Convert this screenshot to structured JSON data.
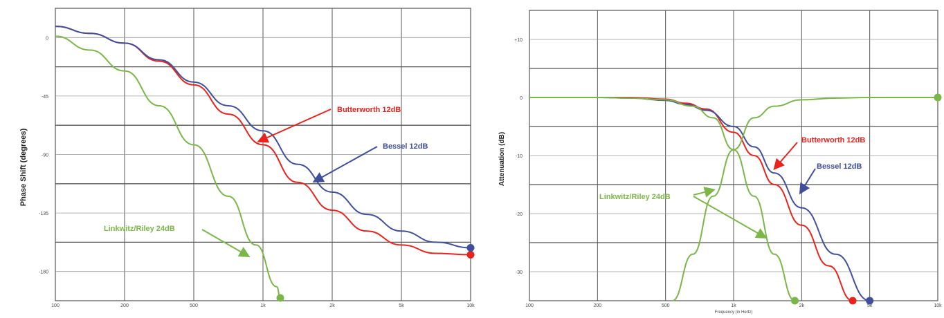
{
  "colors": {
    "butterworth": "#e8231e",
    "bessel": "#3f4f9c",
    "linkwitz": "#7ab648",
    "grid_major": "#555555",
    "grid_minor": "#999999"
  },
  "chart_data": [
    {
      "type": "line",
      "ylabel": "Phase Shift (degrees)",
      "xlabel": "",
      "x_tick_labels": [
        "100",
        "200",
        "500",
        "1k",
        "2k",
        "5k",
        "10k"
      ],
      "y_tick_labels": [
        "0",
        "-45",
        "-90",
        "-135",
        "-180"
      ],
      "ylim": [
        -200,
        10
      ],
      "series": [
        {
          "name": "Butterworth 12dB",
          "color_key": "butterworth",
          "x": [
            0,
            0.5,
            1,
            1.5,
            2,
            2.5,
            3,
            3.5,
            4,
            4.5,
            5,
            5.5,
            6
          ],
          "y": [
            -3,
            -8,
            -15,
            -28,
            -45,
            -66,
            -88,
            -115,
            -135,
            -150,
            -160,
            -166,
            -167
          ]
        },
        {
          "name": "Bessel 12dB",
          "color_key": "bessel",
          "x": [
            0,
            0.5,
            1,
            1.5,
            2,
            2.5,
            3,
            3.5,
            4,
            4.5,
            5,
            5.5,
            6
          ],
          "y": [
            -3,
            -8,
            -15,
            -27,
            -43,
            -60,
            -78,
            -102,
            -122,
            -138,
            -150,
            -158,
            -162
          ]
        },
        {
          "name": "Linkwitz/Riley 24dB",
          "color_key": "linkwitz",
          "x": [
            0,
            0.5,
            1,
            1.5,
            2,
            2.5,
            2.9,
            3.2,
            3.25
          ],
          "y": [
            -10,
            -20,
            -35,
            -60,
            -88,
            -125,
            -160,
            -190,
            -198
          ]
        }
      ],
      "annotations": [
        {
          "text": "Butterworth 12dB",
          "color_key": "butterworth"
        },
        {
          "text": "Bessel 12dB",
          "color_key": "bessel"
        },
        {
          "text": "Linkwitz/Riley 24dB",
          "color_key": "linkwitz"
        }
      ]
    },
    {
      "type": "line",
      "ylabel": "Attenuation (dB)",
      "xlabel": "Frequency (in Hertz)",
      "x_tick_labels": [
        "100",
        "200",
        "500",
        "1k",
        "2k",
        "5k",
        "10k"
      ],
      "y_tick_labels": [
        "+10",
        "0",
        "-10",
        "-20",
        "-30"
      ],
      "ylim": [
        -35,
        15
      ],
      "series": [
        {
          "name": "Butterworth 12dB",
          "color_key": "butterworth",
          "x": [
            0,
            1,
            1.5,
            2,
            2.3,
            2.6,
            3,
            3.3,
            3.6,
            4,
            4.4,
            4.75
          ],
          "y": [
            0,
            0,
            0,
            -0.3,
            -1,
            -2,
            -6,
            -10,
            -15,
            -22,
            -29,
            -35
          ]
        },
        {
          "name": "Bessel 12dB",
          "color_key": "bessel",
          "x": [
            0,
            1,
            1.5,
            2,
            2.3,
            2.6,
            3,
            3.3,
            3.6,
            4,
            4.5,
            5.0
          ],
          "y": [
            0,
            0,
            -0.1,
            -0.5,
            -1.2,
            -2.2,
            -5,
            -8.5,
            -13,
            -19,
            -27,
            -35
          ]
        },
        {
          "name": "Linkwitz/Riley 24dB",
          "color_key": "linkwitz",
          "x": [
            0,
            1,
            1.5,
            2,
            2.4,
            2.7,
            3,
            3.3,
            3.6,
            3.9
          ],
          "y": [
            0,
            0,
            -0.1,
            -0.4,
            -1.5,
            -3.5,
            -9,
            -17,
            -27,
            -35
          ]
        },
        {
          "name": "Linkwitz/Riley 24dB",
          "color_key": "linkwitz",
          "x": [
            2.1,
            2.4,
            2.7,
            3,
            3.3,
            3.6,
            4,
            4.5,
            5,
            6
          ],
          "y": [
            -35,
            -27,
            -17,
            -9,
            -3.5,
            -1.5,
            -0.4,
            -0.1,
            0,
            0
          ]
        }
      ],
      "annotations": [
        {
          "text": "Butterworth 12dB",
          "color_key": "butterworth"
        },
        {
          "text": "Bessel 12dB",
          "color_key": "bessel"
        },
        {
          "text": "Linkwitz/Riley 24dB",
          "color_key": "linkwitz"
        }
      ]
    }
  ]
}
